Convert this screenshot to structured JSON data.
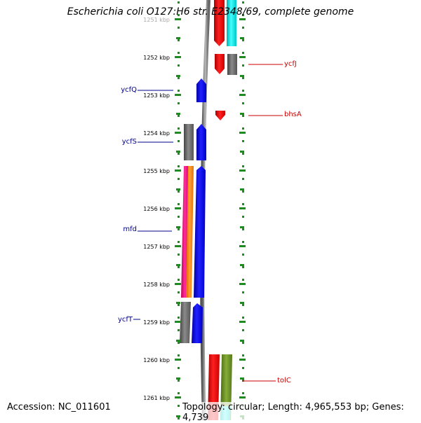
{
  "title": "Escherichia coli O127:H6 str. E2348/69, complete genome",
  "accession": "Accession: NC_011601",
  "topology": "Topology: circular; Length: 4,965,553 bp; Genes: 4,739",
  "ruler": {
    "labels": [
      "1251 kbp",
      "1252 kbp",
      "1253 kbp",
      "1254 kbp",
      "1255 kbp",
      "1256 kbp",
      "1257 kbp",
      "1258 kbp",
      "1259 kbp",
      "1260 kbp",
      "1261 kbp"
    ]
  },
  "genes_left": [
    {
      "name": "ycfQ",
      "color": "#00008b"
    },
    {
      "name": "ycfS",
      "color": "#00008b"
    },
    {
      "name": "mfd",
      "color": "#00008b"
    },
    {
      "name": "ycfT",
      "color": "#00008b"
    }
  ],
  "genes_right": [
    {
      "name": "ycfJ",
      "color": "#cc0000"
    },
    {
      "name": "bhsA",
      "color": "#cc0000"
    },
    {
      "name": "tolC",
      "color": "#cc0000"
    }
  ],
  "colors": {
    "tick_green": "#1e8c1e",
    "backbone": "#808080",
    "red": "#ff0000",
    "blue": "#0000ff",
    "gray": "#666666",
    "cyan": "#00e5e5",
    "magenta": "#ff1a8c",
    "orange": "#ff8c1a",
    "olive": "#6b8e23"
  }
}
